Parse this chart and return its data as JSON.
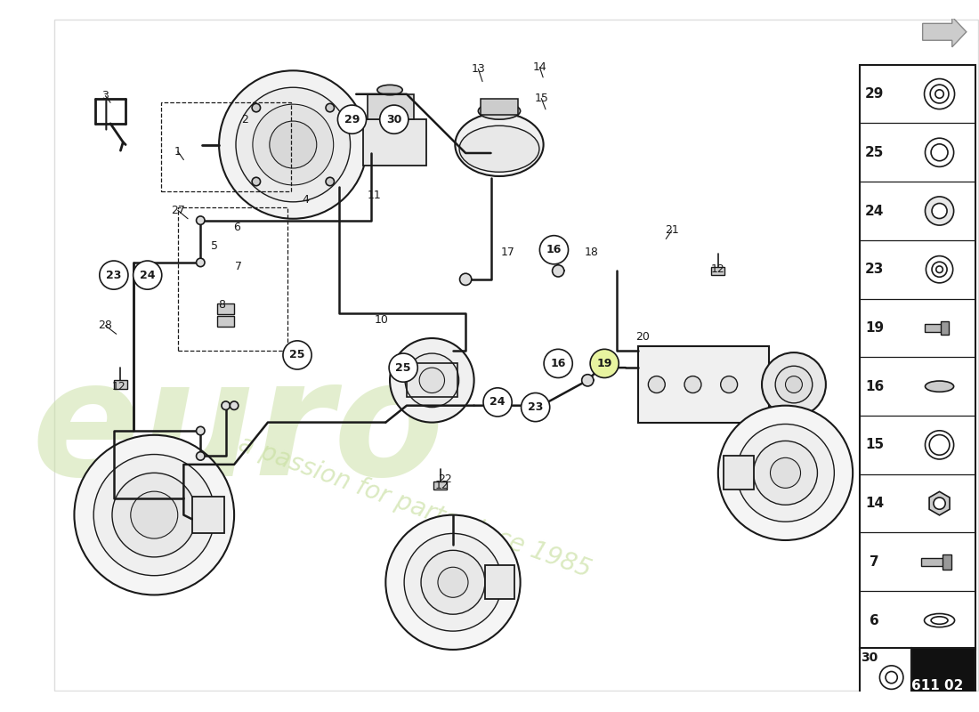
{
  "bg": "#ffffff",
  "lc": "#1a1a1a",
  "wm_color": "#c8dfa0",
  "diagram_num": "611 02",
  "side_items": [
    {
      "num": "29",
      "type": "ring_double"
    },
    {
      "num": "25",
      "type": "ring_single"
    },
    {
      "num": "24",
      "type": "ring_nut"
    },
    {
      "num": "23",
      "type": "ring_double_sm"
    },
    {
      "num": "19",
      "type": "bolt"
    },
    {
      "num": "16",
      "type": "oval_flat"
    },
    {
      "num": "15",
      "type": "ring_thin"
    },
    {
      "num": "14",
      "type": "hex_nut"
    },
    {
      "num": "7",
      "type": "screw"
    },
    {
      "num": "6",
      "type": "washer"
    }
  ]
}
